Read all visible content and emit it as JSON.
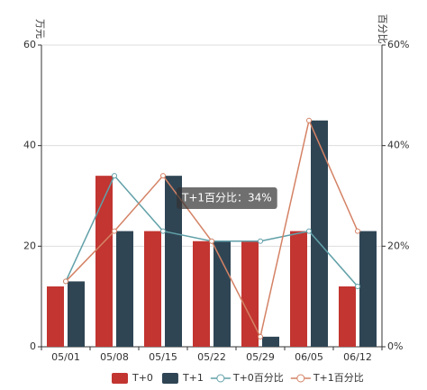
{
  "chart_data": {
    "type": "bar-line",
    "y_axis_label": "万元",
    "y2_axis_label": "百分比",
    "categories": [
      "05/01",
      "05/08",
      "05/15",
      "05/22",
      "05/29",
      "06/05",
      "06/12"
    ],
    "ylim": [
      0,
      60
    ],
    "yticks": [
      0,
      20,
      40,
      60
    ],
    "y2lim": [
      0,
      60
    ],
    "y2ticks": [
      {
        "value": 0,
        "label": "0%"
      },
      {
        "value": 20,
        "label": "20%"
      },
      {
        "value": 40,
        "label": "40%"
      },
      {
        "value": 60,
        "label": "60%"
      }
    ],
    "grid": true,
    "series": [
      {
        "name": "T+0",
        "type": "bar",
        "color": "#c23531",
        "values": [
          12,
          34,
          23,
          21,
          21,
          23,
          12
        ]
      },
      {
        "name": "T+1",
        "type": "bar",
        "color": "#2f4554",
        "values": [
          13,
          23,
          34,
          21,
          2,
          45,
          23
        ]
      },
      {
        "name": "T+0百分比",
        "type": "line",
        "axis": "y2",
        "color": "#61a0a8",
        "values": [
          13,
          34,
          23,
          21,
          21,
          23,
          12
        ]
      },
      {
        "name": "T+1百分比",
        "type": "line",
        "axis": "y2",
        "color": "#d48265",
        "values": [
          13,
          23,
          34,
          21,
          2,
          45,
          23
        ]
      }
    ],
    "legend": "bottom",
    "tooltip": "T+1百分比：34%"
  }
}
